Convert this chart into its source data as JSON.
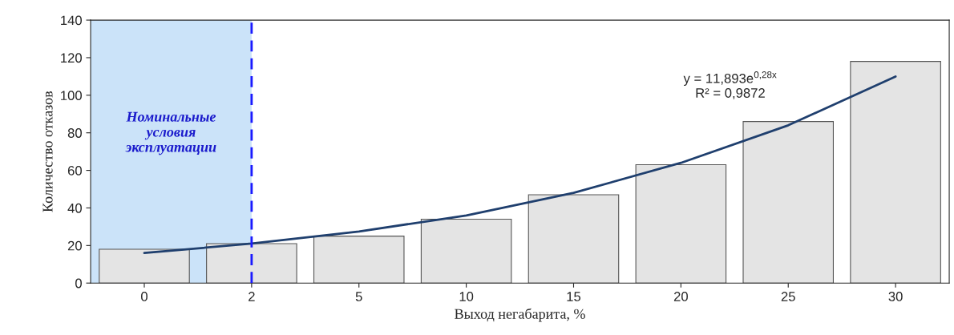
{
  "chart_data": {
    "type": "bar",
    "xlabel": "Выход негабарита, %",
    "ylabel": "Количество отказов",
    "categories": [
      "0",
      "2",
      "5",
      "10",
      "15",
      "20",
      "25",
      "30"
    ],
    "series": [
      {
        "color": "#e4e4e4",
        "values": [
          18,
          21,
          25,
          34,
          47,
          63,
          86,
          118
        ]
      },
      {
        "type": "line",
        "color": "#1f3f6e",
        "x": [
          "0",
          "2",
          "5",
          "10",
          "15",
          "20",
          "25",
          "30"
        ],
        "values": [
          16,
          21,
          27.5,
          36,
          48,
          64,
          84,
          110
        ]
      }
    ],
    "ylim": [
      0,
      140
    ],
    "yticks": [
      0,
      20,
      40,
      60,
      80,
      100,
      120,
      140
    ],
    "grid": false,
    "legend": false,
    "ref_lines": [
      {
        "axis": "x",
        "value": "2",
        "color": "#1a1aff",
        "line_style": "dashed"
      }
    ],
    "bands": [
      {
        "axis": "x",
        "from": "0",
        "to": "2",
        "label": "Номинальные\nусловия\nэксплуатации",
        "color": "#a8d0f5"
      }
    ],
    "annotations": [
      "y = 11,893e$^{0,28x}$\nR² = 0,9872"
    ]
  }
}
